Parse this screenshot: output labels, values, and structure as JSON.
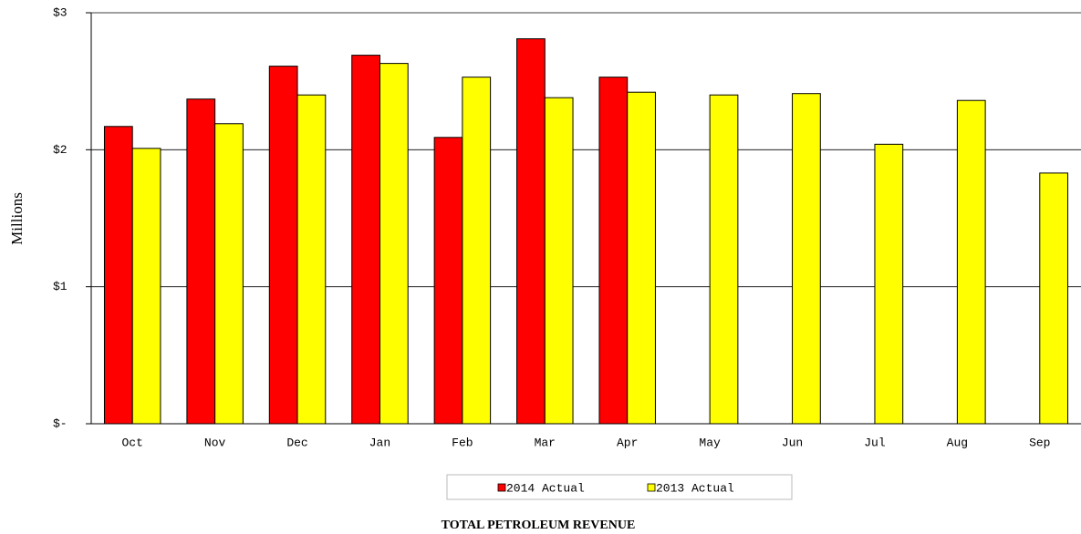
{
  "chart_data": {
    "type": "bar",
    "title": "TOTAL PETROLEUM REVENUE",
    "y_label": "Millions",
    "categories": [
      "Oct",
      "Nov",
      "Dec",
      "Jan",
      "Feb",
      "Mar",
      "Apr",
      "May",
      "Jun",
      "Jul",
      "Aug",
      "Sep"
    ],
    "series": [
      {
        "name": "2014 Actual",
        "color": "#ff0000",
        "values": [
          2.17,
          2.37,
          2.61,
          2.69,
          2.09,
          2.81,
          2.53,
          null,
          null,
          null,
          null,
          null
        ]
      },
      {
        "name": "2013 Actual",
        "color": "#ffff00",
        "values": [
          2.01,
          2.19,
          2.4,
          2.63,
          2.53,
          2.38,
          2.42,
          2.4,
          2.41,
          2.04,
          2.36,
          1.83
        ]
      }
    ],
    "ylim": [
      0,
      3
    ],
    "yticks": [
      {
        "value": 0,
        "label": "$-"
      },
      {
        "value": 1,
        "label": "$1"
      },
      {
        "value": 2,
        "label": "$2"
      },
      {
        "value": 3,
        "label": "$3"
      }
    ],
    "grid": true,
    "legend": "bottom"
  }
}
